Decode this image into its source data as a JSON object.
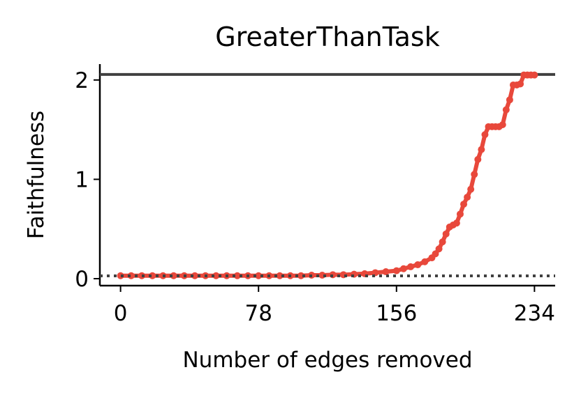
{
  "chart_data": {
    "type": "line",
    "title": "GreaterThanTask",
    "x_label": "Number of edges removed",
    "y_label": "Faithfulness",
    "series": [
      {
        "name": "Faithfulness",
        "color": "#e8483b",
        "x": [
          0,
          6,
          12,
          18,
          24,
          30,
          36,
          42,
          48,
          54,
          60,
          66,
          72,
          78,
          84,
          90,
          96,
          102,
          108,
          114,
          120,
          126,
          132,
          138,
          144,
          150,
          156,
          160,
          164,
          168,
          172,
          176,
          178,
          180,
          182,
          184,
          186,
          188,
          190,
          192,
          194,
          196,
          198,
          200,
          202,
          204,
          206,
          208,
          210,
          212,
          214,
          216,
          218,
          220,
          222,
          224,
          226,
          228,
          230,
          232,
          234
        ],
        "values": [
          0.03,
          0.03,
          0.03,
          0.03,
          0.03,
          0.03,
          0.03,
          0.03,
          0.03,
          0.03,
          0.03,
          0.03,
          0.03,
          0.03,
          0.03,
          0.03,
          0.03,
          0.03,
          0.035,
          0.035,
          0.04,
          0.04,
          0.045,
          0.05,
          0.06,
          0.07,
          0.08,
          0.1,
          0.12,
          0.14,
          0.17,
          0.21,
          0.25,
          0.3,
          0.37,
          0.45,
          0.52,
          0.54,
          0.56,
          0.65,
          0.75,
          0.82,
          0.9,
          1.05,
          1.2,
          1.3,
          1.45,
          1.53,
          1.53,
          1.53,
          1.53,
          1.55,
          1.7,
          1.8,
          1.95,
          1.95,
          1.96,
          2.05,
          2.05,
          2.05,
          2.05
        ]
      }
    ],
    "reference_lines": [
      {
        "y": 2.056,
        "style": "solid",
        "color": "#404040"
      },
      {
        "y": 0.028,
        "style": "dotted",
        "color": "#404040"
      }
    ],
    "xlim": [
      -11.7,
      245.7
    ],
    "ylim": [
      -0.07,
      2.16
    ],
    "xticks": [
      0,
      78,
      156,
      234
    ],
    "yticks": [
      0,
      1,
      2
    ]
  }
}
